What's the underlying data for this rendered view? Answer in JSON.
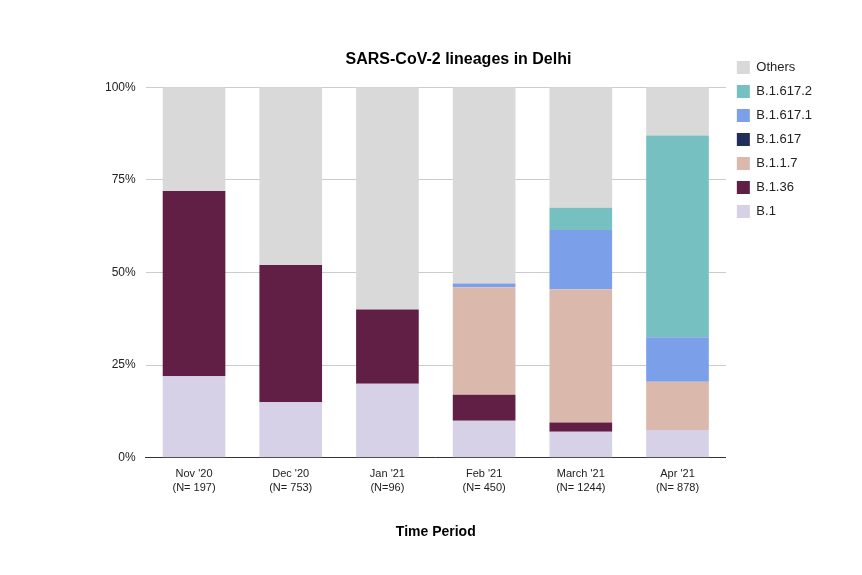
{
  "chart_data": {
    "type": "bar",
    "title": "SARS-CoV-2 lineages in Delhi",
    "x_label": "Time Period",
    "categories": [
      [
        "Nov '20",
        "(N= 197)"
      ],
      [
        "Dec '20",
        "(N= 753)"
      ],
      [
        "Jan '21",
        "(N=96)"
      ],
      [
        "Feb '21",
        "(N= 450)"
      ],
      [
        "March '21",
        "(N= 1244)"
      ],
      [
        "Apr '21",
        "(N= 878)"
      ]
    ],
    "stacked": true,
    "grid": true,
    "legend": "right",
    "ylim": [
      0,
      100
    ],
    "yticks": [
      {
        "value": 0,
        "label": "0%"
      },
      {
        "value": 25,
        "label": "25%"
      },
      {
        "value": 50,
        "label": "50%"
      },
      {
        "value": 75,
        "label": "75%"
      },
      {
        "value": 100,
        "label": "100%"
      }
    ],
    "series": [
      {
        "name": "B.1",
        "color": "#d6d1e6",
        "values": [
          22,
          15,
          20,
          10,
          7,
          7.5
        ]
      },
      {
        "name": "B.1.36",
        "color": "#611f45",
        "values": [
          50,
          37,
          20,
          7,
          2.5,
          0
        ]
      },
      {
        "name": "B.1.1.7",
        "color": "#dbb8ac",
        "values": [
          0,
          0,
          0,
          29,
          36,
          13
        ]
      },
      {
        "name": "B.1.617",
        "color": "#1f2f5a",
        "values": [
          0,
          0,
          0,
          0,
          0,
          0
        ]
      },
      {
        "name": "B.1.617.1",
        "color": "#7b9fe8",
        "values": [
          0,
          0,
          0,
          1,
          16,
          12
        ]
      },
      {
        "name": "B.1.617.2",
        "color": "#76c0c1",
        "values": [
          0,
          0,
          0,
          0,
          6,
          54.5
        ]
      },
      {
        "name": "Others",
        "color": "#d9d9d9",
        "values": [
          28,
          48,
          60,
          53,
          32.5,
          13
        ]
      }
    ]
  }
}
